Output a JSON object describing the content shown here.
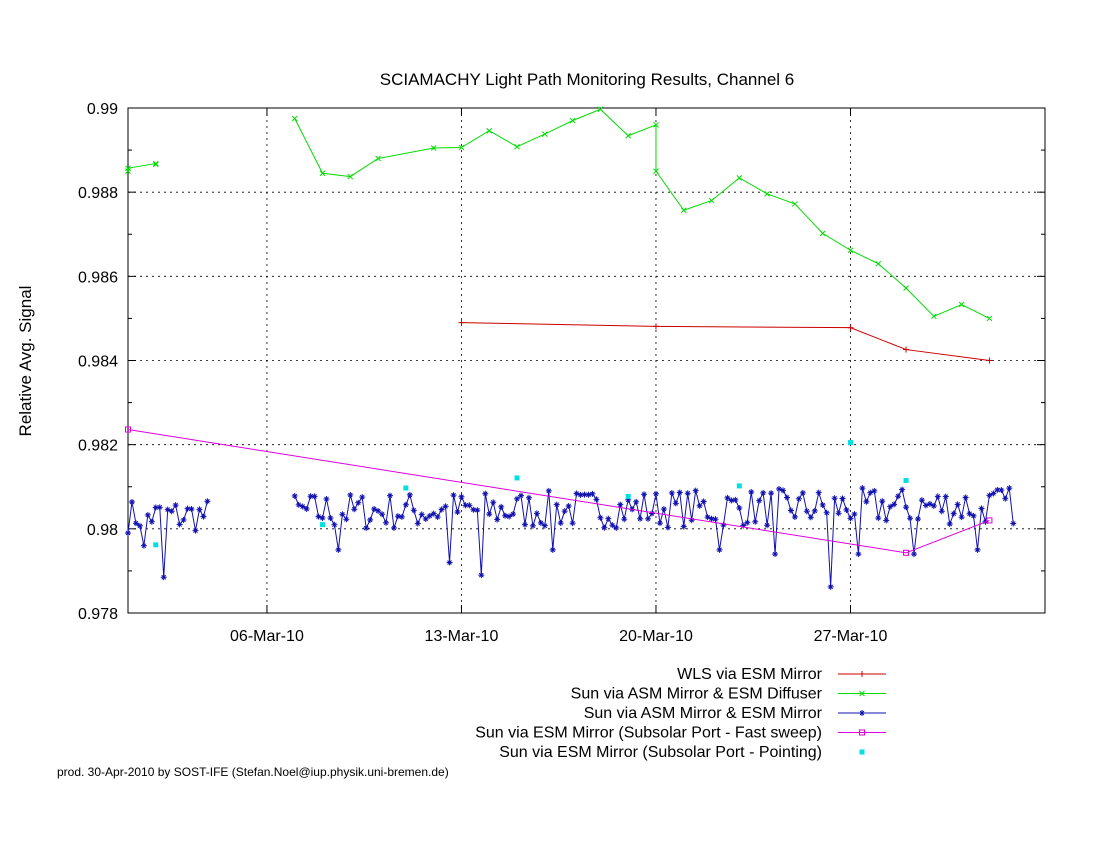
{
  "chart_data": {
    "type": "line",
    "title": "SCIAMACHY Light Path Monitoring Results, Channel 6",
    "xlabel": "",
    "ylabel": "Relative Avg. Signal",
    "xlim": [
      "2010-03-01",
      "2010-04-03"
    ],
    "ylim": [
      0.978,
      0.99
    ],
    "yticks": [
      "0.978",
      "0.98",
      "0.982",
      "0.984",
      "0.986",
      "0.988",
      "0.99"
    ],
    "xticks": [
      {
        "date": "2010-03-06",
        "label": "06-Mar-10"
      },
      {
        "date": "2010-03-13",
        "label": "13-Mar-10"
      },
      {
        "date": "2010-03-20",
        "label": "20-Mar-10"
      },
      {
        "date": "2010-03-27",
        "label": "27-Mar-10"
      }
    ],
    "grid": "dashed at x ticks",
    "legend_position": "bottom-right",
    "footer": "prod. 30-Apr-2010 by SOST-IFE (Stefan.Noel@iup.physik.uni-bremen.de)",
    "series": [
      {
        "name": "WLS via ESM Mirror",
        "color": "#cc0000",
        "marker": "plus",
        "line": true,
        "points": [
          [
            "2010-03-13",
            0.9849
          ],
          [
            "2010-03-20",
            0.98481
          ],
          [
            "2010-03-27",
            0.98478
          ],
          [
            "2010-03-29",
            0.98426
          ],
          [
            "2010-04-01",
            0.984
          ]
        ]
      },
      {
        "name": "Sun via ASM Mirror & ESM Diffuser",
        "color": "#00dd00",
        "marker": "cross",
        "line": true,
        "points": [
          [
            "2010-03-01",
            0.9885
          ],
          [
            "2010-03-01",
            0.98857
          ],
          [
            "2010-03-02",
            0.98868
          ],
          [
            "2010-03-02",
            0.98866
          ],
          null,
          [
            "2010-03-07",
            0.98975
          ],
          [
            "2010-03-08",
            0.98845
          ],
          [
            "2010-03-09",
            0.98837
          ],
          [
            "2010-03-10",
            0.9888
          ],
          [
            "2010-03-12",
            0.98905
          ],
          [
            "2010-03-13",
            0.98906
          ],
          [
            "2010-03-14",
            0.98946
          ],
          [
            "2010-03-15",
            0.98908
          ],
          [
            "2010-03-16",
            0.98938
          ],
          [
            "2010-03-17",
            0.9897
          ],
          [
            "2010-03-18",
            0.98997
          ],
          [
            "2010-03-19",
            0.98934
          ],
          [
            "2010-03-20",
            0.9896
          ],
          [
            "2010-03-20",
            0.9885
          ],
          [
            "2010-03-21",
            0.98757
          ],
          [
            "2010-03-22",
            0.9878
          ],
          [
            "2010-03-23",
            0.98834
          ],
          [
            "2010-03-24",
            0.98796
          ],
          [
            "2010-03-25",
            0.98772
          ],
          [
            "2010-03-26",
            0.98702
          ],
          [
            "2010-03-27",
            0.98662
          ],
          [
            "2010-03-28",
            0.9863
          ],
          [
            "2010-03-29",
            0.98572
          ],
          [
            "2010-03-30",
            0.98505
          ],
          [
            "2010-03-31",
            0.98533
          ],
          [
            "2010-04-01",
            0.985
          ]
        ]
      },
      {
        "name": "Sun via ASM Mirror & ESM Mirror",
        "color": "#1010b0",
        "marker": "star",
        "line": true,
        "segments": [
          {
            "start": "2010-03-01",
            "end": "2010-03-03",
            "base": 0.9803,
            "amp": 0.0004,
            "dips": [
              [
                "2010-03-01",
                0.9791
              ],
              [
                "2010-03-02",
                0.97885
              ],
              [
                "2010-03-01",
                0.9796
              ]
            ]
          },
          {
            "start": "2010-03-07",
            "end": "2010-04-01",
            "base": 0.9804,
            "amp": 0.00045,
            "dips": [
              [
                "2010-03-08",
                0.9795
              ],
              [
                "2010-03-12",
                0.97875
              ],
              [
                "2010-03-12",
                0.9792
              ],
              [
                "2010-03-13",
                0.9789
              ],
              [
                "2010-03-16",
                0.9795
              ],
              [
                "2010-03-22",
                0.9795
              ],
              [
                "2010-03-24",
                0.9794
              ],
              [
                "2010-03-26",
                0.97862
              ],
              [
                "2010-03-27",
                0.9794
              ],
              [
                "2010-03-29",
                0.9794
              ],
              [
                "2010-03-31",
                0.9795
              ]
            ]
          }
        ]
      },
      {
        "name": "Sun via ESM Mirror (Subsolar Port - Fast sweep)",
        "color": "#dd00dd",
        "marker": "square",
        "line": true,
        "points": [
          [
            "2010-03-01",
            0.98236
          ],
          [
            "2010-03-29",
            0.97943
          ],
          [
            "2010-04-01",
            0.9802
          ]
        ]
      },
      {
        "name": "Sun via ESM Mirror (Subsolar Port - Pointing)",
        "color": "#00e0e0",
        "marker": "dot",
        "line": false,
        "points": [
          [
            "2010-03-02",
            0.97962
          ],
          [
            "2010-03-08",
            0.9801
          ],
          [
            "2010-03-11",
            0.98097
          ],
          [
            "2010-03-15",
            0.98121
          ],
          [
            "2010-03-19",
            0.98077
          ],
          [
            "2010-03-23",
            0.98102
          ],
          [
            "2010-03-27",
            0.98205
          ],
          [
            "2010-03-29",
            0.98115
          ]
        ]
      }
    ]
  }
}
